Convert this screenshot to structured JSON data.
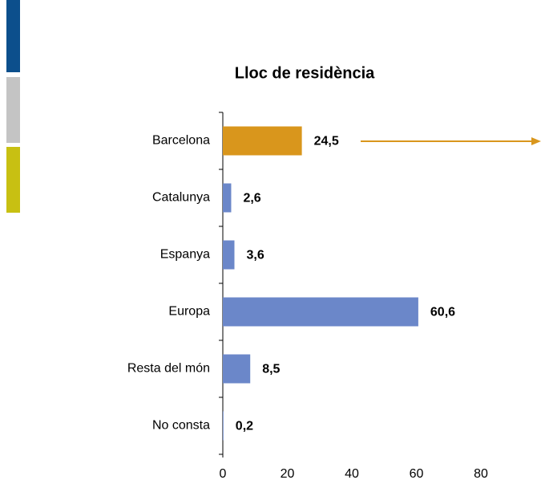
{
  "chart_data": {
    "type": "bar",
    "orientation": "horizontal",
    "title": "Lloc de residència",
    "categories": [
      "Barcelona",
      "Catalunya",
      "Espanya",
      "Europa",
      "Resta del món",
      "No consta"
    ],
    "values": [
      24.5,
      2.6,
      3.6,
      60.6,
      8.5,
      0.2
    ],
    "value_labels": [
      "24,5",
      "2,6",
      "3,6",
      "60,6",
      "8,5",
      "0,2"
    ],
    "colors": [
      "#d9961c",
      "#6b87c9",
      "#6b87c9",
      "#6b87c9",
      "#6b87c9",
      "#6b87c9"
    ],
    "xlim": [
      0,
      80
    ],
    "xticks": [
      0,
      20,
      40,
      60,
      80
    ],
    "grid": false
  }
}
